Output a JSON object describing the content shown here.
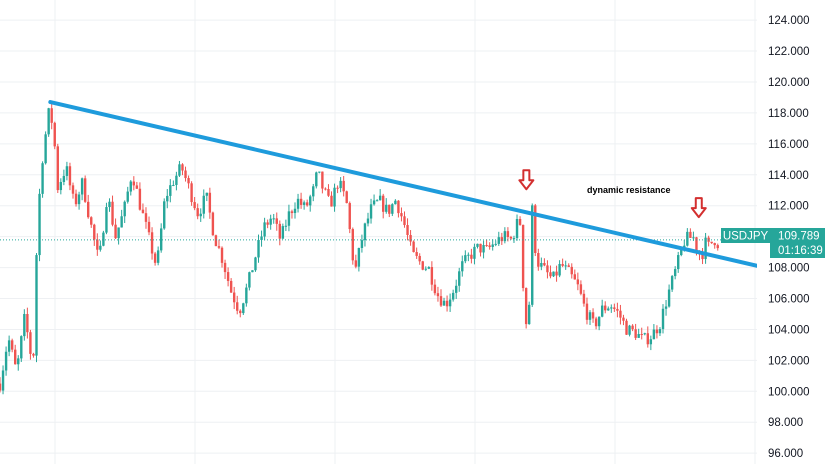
{
  "chart_data": {
    "type": "candlestick",
    "symbol": "USDJPY",
    "last_price": "109.789",
    "countdown": "01:16:39",
    "ylim": [
      95.3,
      125.3
    ],
    "y_ticks": [
      "96.000",
      "98.000",
      "100.000",
      "102.000",
      "104.000",
      "106.000",
      "108.000",
      "110.000",
      "112.000",
      "114.000",
      "116.000",
      "118.000",
      "120.000",
      "122.000",
      "124.000"
    ],
    "y_tick_values": [
      96,
      98,
      100,
      102,
      104,
      106,
      108,
      110,
      112,
      114,
      116,
      118,
      120,
      122,
      124
    ],
    "trendline": {
      "label": "dynamic resistance",
      "start": [
        0.061,
        118.7
      ],
      "end": [
        0.927,
        108.0
      ],
      "color": "#1e9bdc"
    },
    "arrows": [
      {
        "at": [
          0.638,
          113.0
        ],
        "color": "#d32f2f"
      },
      {
        "at": [
          0.847,
          111.2
        ],
        "color": "#d32f2f"
      }
    ],
    "colors": {
      "up": "#26a69a",
      "down": "#ef5350",
      "badge": "#26a69a",
      "grid": "#eef0f3",
      "axis_text": "#131722"
    },
    "close_path": [
      [
        0.0,
        100.5
      ],
      [
        0.01,
        103.5
      ],
      [
        0.02,
        101.2
      ],
      [
        0.03,
        104.8
      ],
      [
        0.04,
        101.5
      ],
      [
        0.045,
        110.2
      ],
      [
        0.05,
        114.5
      ],
      [
        0.055,
        116.5
      ],
      [
        0.06,
        118.3
      ],
      [
        0.065,
        116.8
      ],
      [
        0.07,
        113.2
      ],
      [
        0.08,
        114.5
      ],
      [
        0.09,
        112.0
      ],
      [
        0.1,
        113.5
      ],
      [
        0.11,
        110.8
      ],
      [
        0.12,
        108.3
      ],
      [
        0.13,
        112.8
      ],
      [
        0.14,
        110.0
      ],
      [
        0.15,
        111.6
      ],
      [
        0.16,
        114.2
      ],
      [
        0.17,
        112.0
      ],
      [
        0.18,
        110.0
      ],
      [
        0.19,
        108.0
      ],
      [
        0.2,
        112.5
      ],
      [
        0.21,
        113.6
      ],
      [
        0.22,
        114.5
      ],
      [
        0.23,
        113.0
      ],
      [
        0.24,
        111.5
      ],
      [
        0.25,
        112.6
      ],
      [
        0.26,
        110.0
      ],
      [
        0.27,
        108.5
      ],
      [
        0.28,
        106.5
      ],
      [
        0.29,
        105.2
      ],
      [
        0.3,
        106.8
      ],
      [
        0.31,
        108.8
      ],
      [
        0.32,
        110.6
      ],
      [
        0.33,
        111.3
      ],
      [
        0.34,
        109.8
      ],
      [
        0.35,
        111.4
      ],
      [
        0.36,
        112.4
      ],
      [
        0.37,
        111.8
      ],
      [
        0.38,
        113.0
      ],
      [
        0.385,
        114.2
      ],
      [
        0.39,
        113.3
      ],
      [
        0.4,
        112.0
      ],
      [
        0.41,
        113.6
      ],
      [
        0.42,
        112.2
      ],
      [
        0.43,
        107.6
      ],
      [
        0.44,
        110.2
      ],
      [
        0.45,
        111.8
      ],
      [
        0.46,
        112.3
      ],
      [
        0.47,
        111.6
      ],
      [
        0.48,
        112.4
      ],
      [
        0.49,
        110.8
      ],
      [
        0.5,
        108.8
      ],
      [
        0.51,
        108.3
      ],
      [
        0.52,
        107.9
      ],
      [
        0.53,
        106.3
      ],
      [
        0.54,
        105.6
      ],
      [
        0.55,
        106.6
      ],
      [
        0.56,
        108.1
      ],
      [
        0.57,
        108.8
      ],
      [
        0.58,
        109.3
      ],
      [
        0.59,
        109.1
      ],
      [
        0.6,
        109.6
      ],
      [
        0.61,
        110.0
      ],
      [
        0.62,
        109.8
      ],
      [
        0.63,
        111.3
      ],
      [
        0.635,
        106.0
      ],
      [
        0.64,
        103.2
      ],
      [
        0.645,
        111.8
      ],
      [
        0.65,
        108.5
      ],
      [
        0.66,
        107.8
      ],
      [
        0.67,
        107.2
      ],
      [
        0.68,
        108.2
      ],
      [
        0.69,
        107.6
      ],
      [
        0.7,
        106.8
      ],
      [
        0.71,
        105.2
      ],
      [
        0.72,
        104.2
      ],
      [
        0.73,
        105.3
      ],
      [
        0.74,
        105.6
      ],
      [
        0.75,
        105.0
      ],
      [
        0.76,
        104.0
      ],
      [
        0.77,
        103.8
      ],
      [
        0.78,
        103.3
      ],
      [
        0.79,
        103.6
      ],
      [
        0.8,
        104.4
      ],
      [
        0.81,
        106.3
      ],
      [
        0.82,
        108.0
      ],
      [
        0.83,
        109.8
      ],
      [
        0.84,
        110.0
      ],
      [
        0.845,
        109.2
      ],
      [
        0.85,
        108.7
      ],
      [
        0.855,
        109.6
      ],
      [
        0.86,
        109.3
      ],
      [
        0.865,
        109.9
      ],
      [
        0.87,
        109.6
      ]
    ]
  }
}
